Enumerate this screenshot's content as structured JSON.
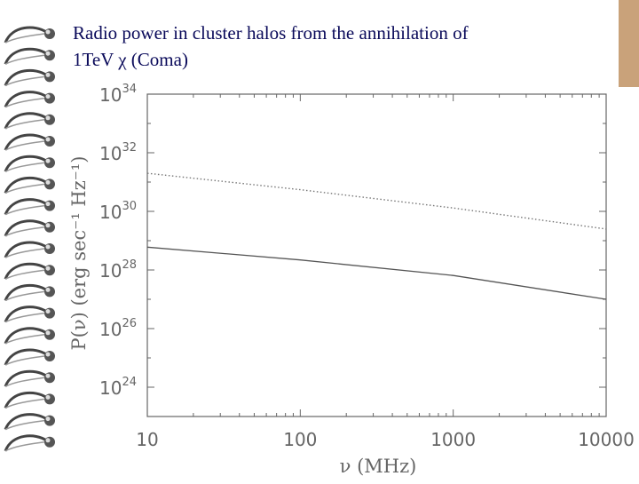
{
  "slide": {
    "title_line1": "Radio power in cluster halos from the annihilation of",
    "title_line2": "1TeV χ (Coma)",
    "colors": {
      "title": "#0a0a5a",
      "accent_strip": "#c9a27a",
      "axis": "#666666",
      "solid_series": "#555555",
      "dotted_series": "#777777"
    }
  },
  "chart_data": {
    "type": "line",
    "xlabel": "ν (MHz)",
    "ylabel": "P(ν) (erg sec⁻¹ Hz⁻¹)",
    "xscale": "log",
    "yscale": "log",
    "xlim": [
      10,
      10000
    ],
    "ylim": [
      1e+23,
      1e+34
    ],
    "x_ticks": [
      "10",
      "100",
      "1000",
      "10000"
    ],
    "y_ticks": [
      {
        "base": "10",
        "exp": "24"
      },
      {
        "base": "10",
        "exp": "26"
      },
      {
        "base": "10",
        "exp": "28"
      },
      {
        "base": "10",
        "exp": "30"
      },
      {
        "base": "10",
        "exp": "32"
      },
      {
        "base": "10",
        "exp": "34"
      }
    ],
    "grid": false,
    "series": [
      {
        "style": "dotted",
        "x": [
          10,
          100,
          1000,
          10000
        ],
        "y": [
          2e+31,
          5.5e+30,
          1.3e+30,
          2.5e+29
        ]
      },
      {
        "style": "solid",
        "x": [
          10,
          100,
          1000,
          10000
        ],
        "y": [
          6e+28,
          2.2e+28,
          6.5e+27,
          1e+27
        ]
      }
    ]
  }
}
